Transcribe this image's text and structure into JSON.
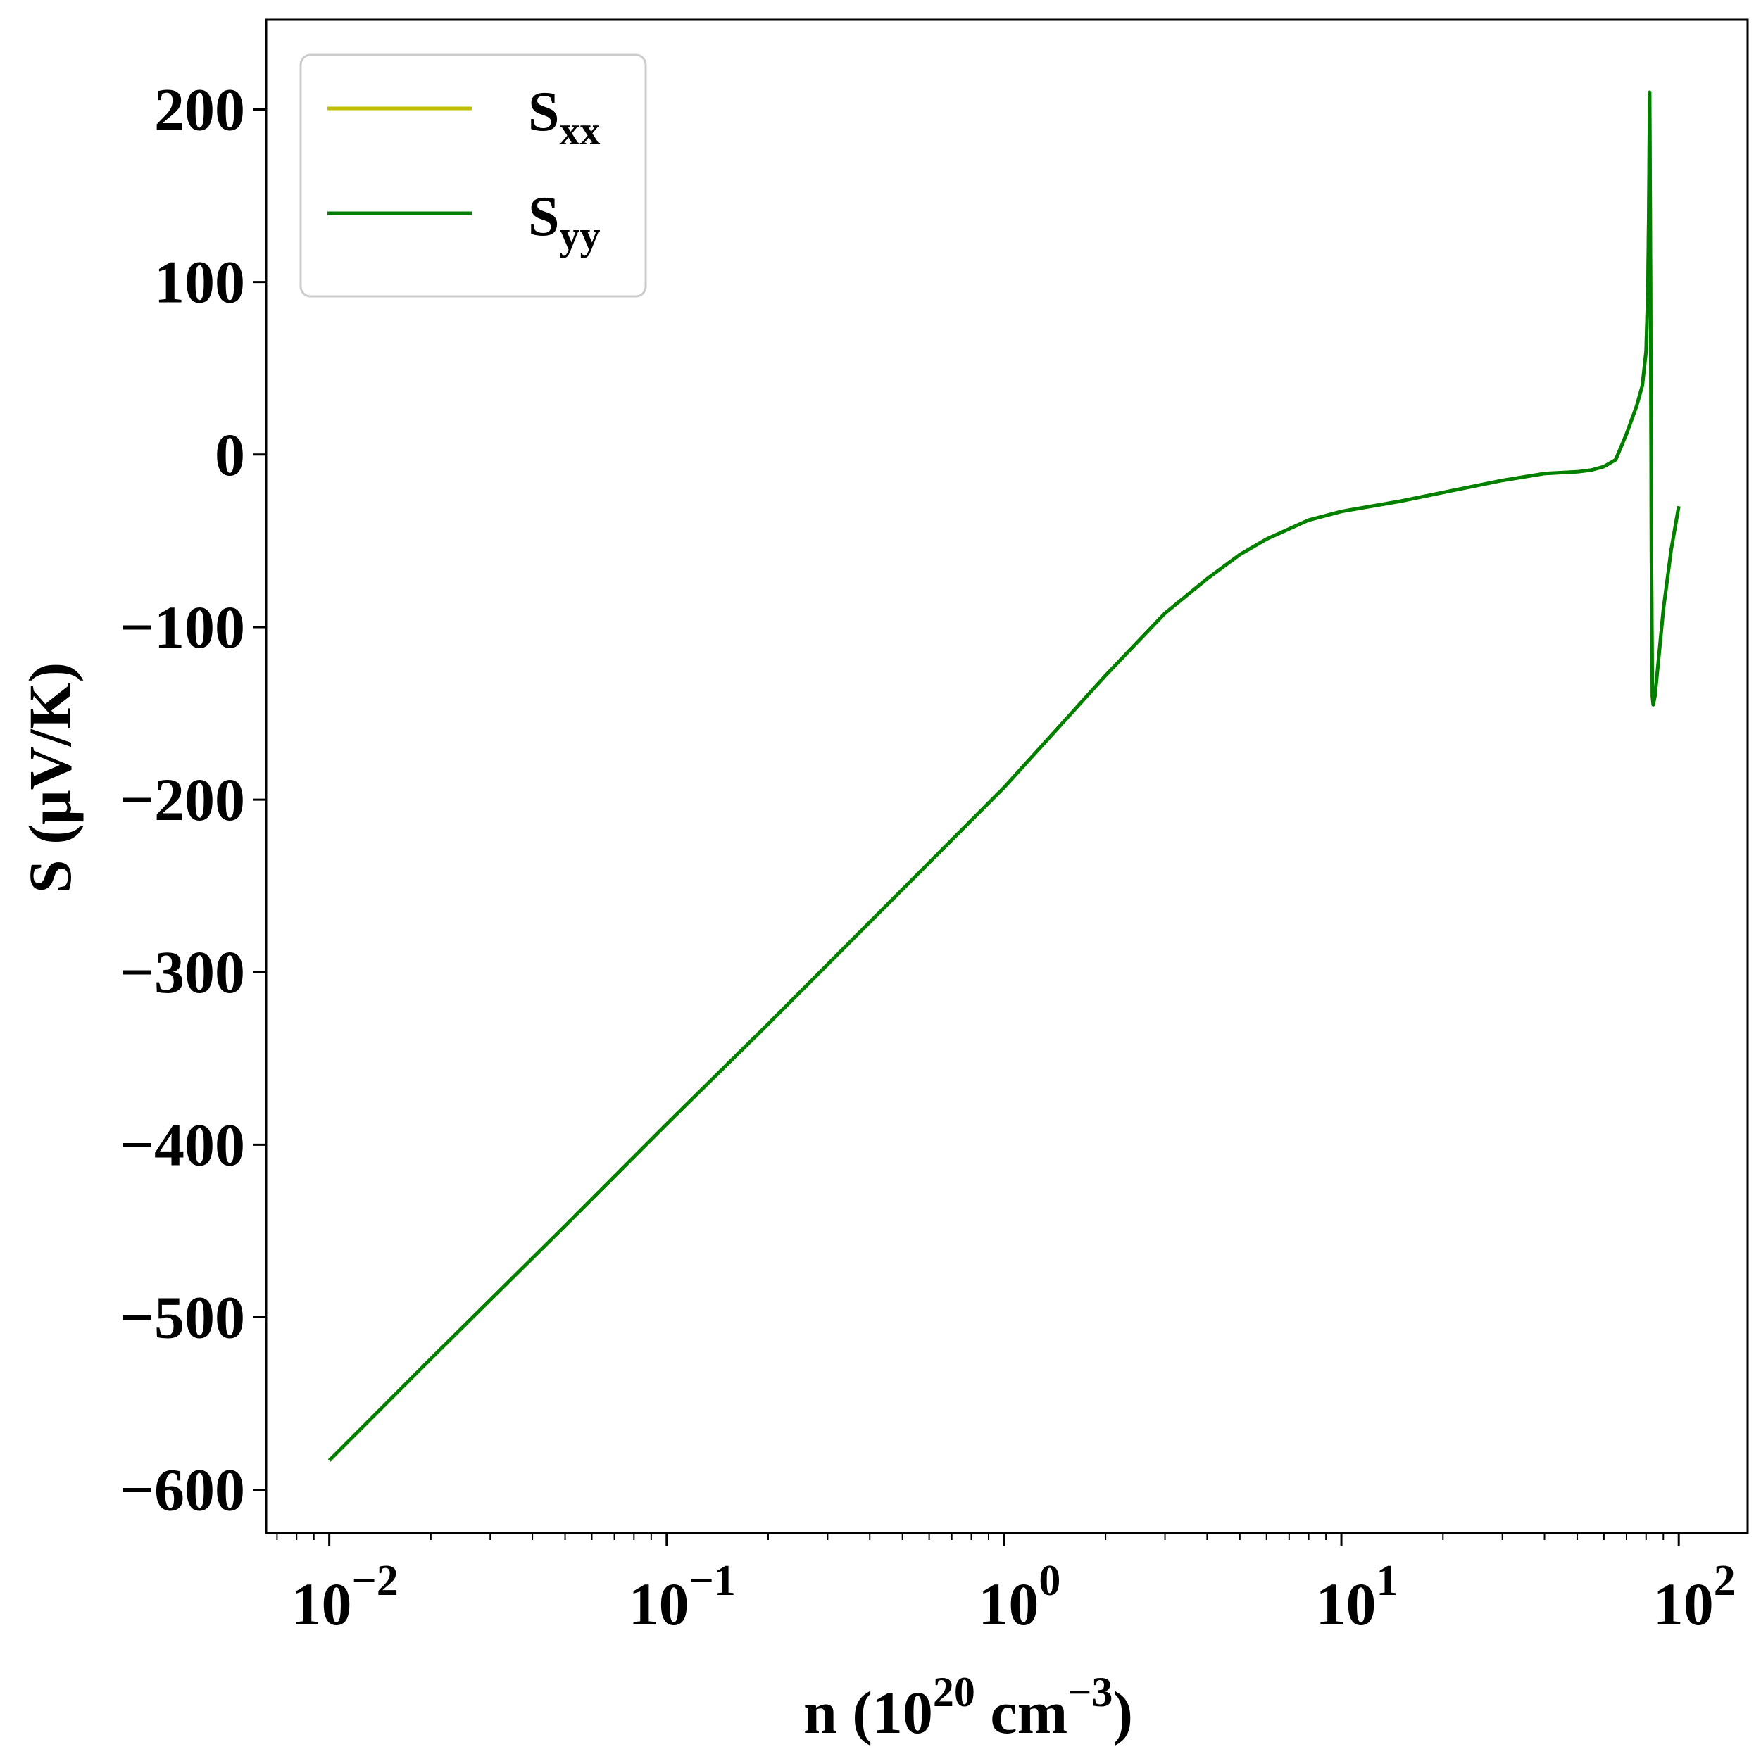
{
  "chart_data": {
    "type": "line",
    "xlabel": "n (10^20 cm^-3)",
    "xlabel_parts": {
      "base": "n (10",
      "sup1": "20",
      "mid": " cm",
      "sup2": "−3",
      "end": ")"
    },
    "ylabel": "S (μV/K)",
    "xscale": "log",
    "xlim": [
      0.0065,
      160
    ],
    "ylim": [
      -625,
      252
    ],
    "x_ticks": [
      {
        "value": 0.01,
        "base": "10",
        "exp": "−2"
      },
      {
        "value": 0.1,
        "base": "10",
        "exp": "−1"
      },
      {
        "value": 1,
        "base": "10",
        "exp": "0"
      },
      {
        "value": 10,
        "base": "10",
        "exp": "1"
      },
      {
        "value": 100,
        "base": "10",
        "exp": "2"
      }
    ],
    "y_ticks": [
      {
        "value": 200,
        "label": "200"
      },
      {
        "value": 100,
        "label": "100"
      },
      {
        "value": 0,
        "label": "0"
      },
      {
        "value": -100,
        "label": "−100"
      },
      {
        "value": -200,
        "label": "−200"
      },
      {
        "value": -300,
        "label": "−300"
      },
      {
        "value": -400,
        "label": "−400"
      },
      {
        "value": -500,
        "label": "−500"
      },
      {
        "value": -600,
        "label": "−600"
      }
    ],
    "grid": false,
    "legend_position": "top-left",
    "series": [
      {
        "name": "S_xx",
        "label_main": "S",
        "label_sub": "xx",
        "color": "#bfbf00",
        "x": [
          0.01,
          0.02,
          0.05,
          0.1,
          0.2,
          0.5,
          1.0,
          1.5,
          2.0,
          3.0,
          4.0,
          5.0,
          6.0,
          8.0,
          10.0,
          15.0,
          20.0,
          30.0,
          40.0,
          50.0,
          55.0,
          60.0,
          65.0,
          70.0,
          75.0,
          78.0,
          80.0,
          81.0,
          81.5,
          82.0,
          82.5,
          83.0,
          83.5,
          84.0,
          85.0,
          87.0,
          90.0,
          95.0,
          100.0
        ],
        "y": [
          -583,
          -524,
          -447,
          -388,
          -330,
          -252,
          -193,
          -155,
          -128,
          -92,
          -72,
          -58,
          -49,
          -38,
          -33,
          -27,
          -22,
          -15,
          -11,
          -10,
          -9,
          -7,
          -3,
          12,
          28,
          40,
          60,
          95,
          140,
          210,
          100,
          -60,
          -140,
          -145,
          -140,
          -120,
          -90,
          -55,
          -30
        ]
      },
      {
        "name": "S_yy",
        "label_main": "S",
        "label_sub": "yy",
        "color": "#008000",
        "x": [
          0.01,
          0.02,
          0.05,
          0.1,
          0.2,
          0.5,
          1.0,
          1.5,
          2.0,
          3.0,
          4.0,
          5.0,
          6.0,
          8.0,
          10.0,
          15.0,
          20.0,
          30.0,
          40.0,
          50.0,
          55.0,
          60.0,
          65.0,
          70.0,
          75.0,
          78.0,
          80.0,
          81.0,
          81.5,
          82.0,
          82.5,
          83.0,
          83.5,
          84.0,
          85.0,
          87.0,
          90.0,
          95.0,
          100.0
        ],
        "y": [
          -583,
          -524,
          -447,
          -388,
          -330,
          -252,
          -193,
          -155,
          -128,
          -92,
          -72,
          -58,
          -49,
          -38,
          -33,
          -27,
          -22,
          -15,
          -11,
          -10,
          -9,
          -7,
          -3,
          12,
          28,
          40,
          60,
          95,
          140,
          210,
          100,
          -60,
          -140,
          -145,
          -140,
          -120,
          -90,
          -55,
          -30
        ]
      }
    ]
  }
}
